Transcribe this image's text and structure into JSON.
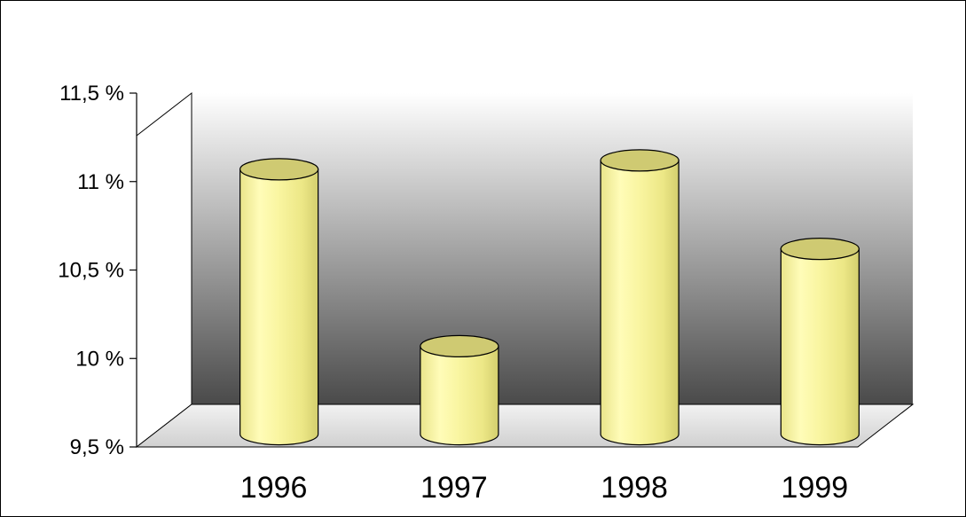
{
  "chart_data": {
    "type": "bar",
    "style": "3d-cylinder",
    "title": "",
    "xlabel": "",
    "ylabel": "",
    "categories": [
      "1996",
      "1997",
      "1998",
      "1999"
    ],
    "values": [
      11.25,
      10.25,
      11.3,
      10.8
    ],
    "ylim": [
      9.5,
      11.5
    ],
    "yticks": [
      9.5,
      10,
      10.5,
      11,
      11.5
    ],
    "ytick_labels": [
      "9,5 %",
      "10 %",
      "10,5 %",
      "11 %",
      "11,5 %"
    ],
    "grid": false,
    "legend": "none",
    "colors": {
      "bar": "#f4f096",
      "bar_top": "#cfca72",
      "back_wall_top": "#ffffff",
      "back_wall_bottom": "#444444",
      "floor": "#e8e8e8"
    }
  }
}
